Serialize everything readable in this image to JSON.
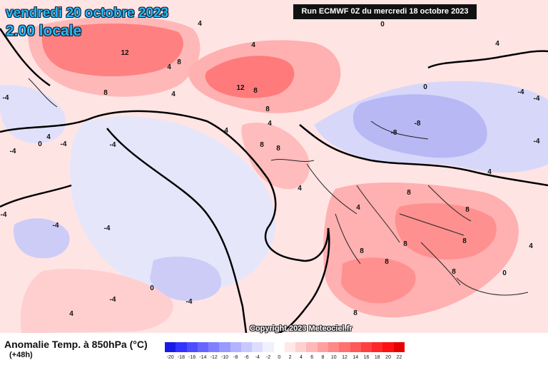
{
  "title": {
    "date": "vendredi 20 octobre 2023",
    "time": "2.00 locale"
  },
  "run_info": "Run ECMWF 0Z du mercredi 18 octobre 2023",
  "copyright": "Copyright 2023 Meteociel.fr",
  "legend": {
    "title": "Anomalie Temp. à 850hPa (°C)",
    "subtitle": "(+48h)",
    "scale_values": [
      "-20",
      "-18",
      "-16",
      "-14",
      "-12",
      "-10",
      "-8",
      "-6",
      "-4",
      "-2",
      "0",
      "2",
      "4",
      "6",
      "8",
      "10",
      "12",
      "14",
      "16",
      "18",
      "20",
      "22"
    ],
    "scale_colors": [
      "#1a1ae6",
      "#3333ff",
      "#4d4dff",
      "#6666ff",
      "#8080ff",
      "#9999ff",
      "#b3b3ff",
      "#c8c8ff",
      "#ddddff",
      "#f0f0ff",
      "#ffffff",
      "#ffe8e8",
      "#ffd0d0",
      "#ffb8b8",
      "#ffa0a0",
      "#ff8888",
      "#ff7070",
      "#ff5858",
      "#ff4040",
      "#ff2828",
      "#ff1010",
      "#e60000"
    ]
  },
  "map_labels": [
    "12",
    "4",
    "8",
    "4",
    "0",
    "4",
    "12",
    "4",
    "8",
    "8",
    "4",
    "-4",
    "4",
    "-4",
    "-4",
    "0",
    "-4",
    "8",
    "4",
    "8",
    "8",
    "0",
    "-8",
    "-8",
    "-4",
    "-4",
    "4",
    "-4",
    "-4",
    "8",
    "8",
    "-4",
    "-4",
    "8",
    "8",
    "8",
    "8",
    "8",
    "0",
    "4",
    "4",
    "0",
    "-4",
    "8",
    "4",
    "4",
    "-4",
    "4"
  ],
  "colors": {
    "title_text": "#29b6f6",
    "run_box": "#111111",
    "warm_anomaly": "#ff7070",
    "cold_anomaly": "#9999ff"
  }
}
